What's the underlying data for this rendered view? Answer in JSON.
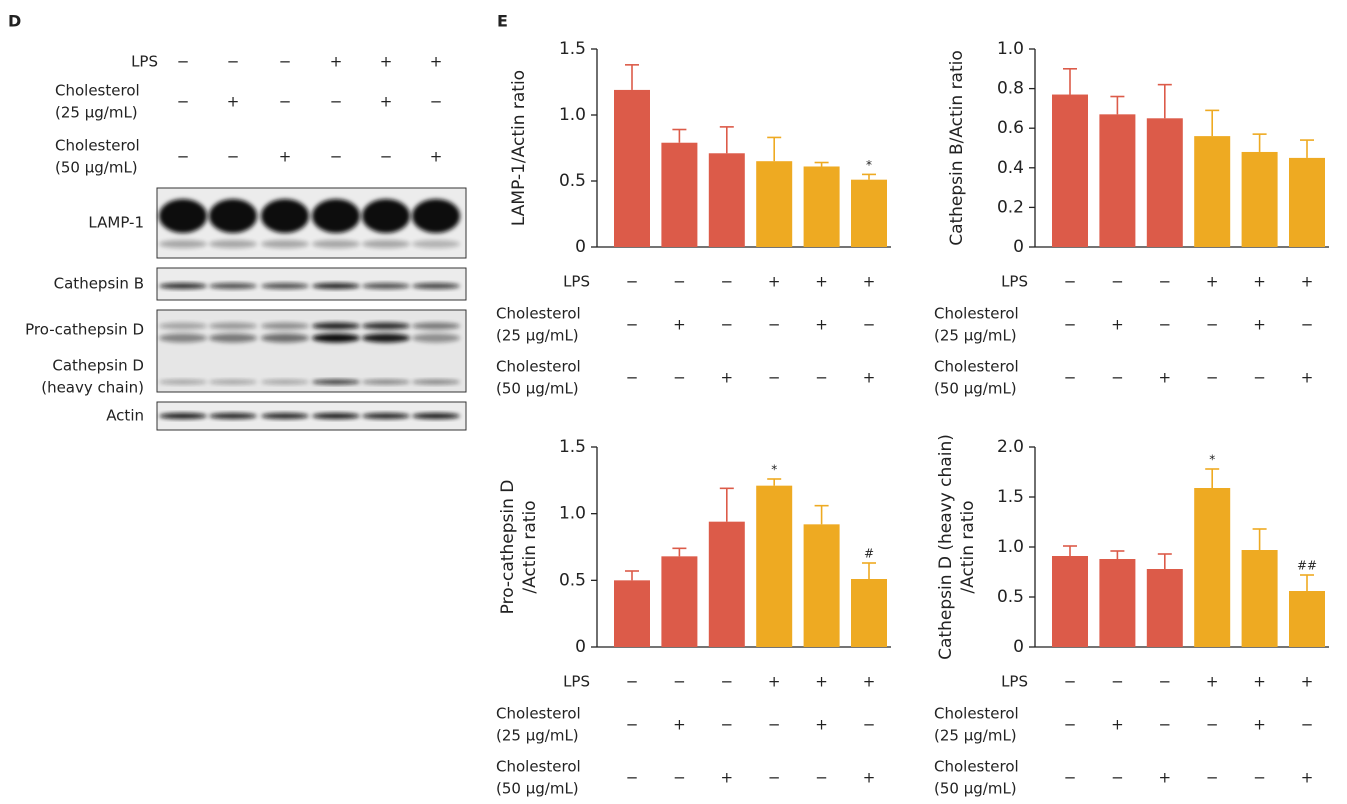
{
  "panel_d": {
    "label": "D",
    "treatments": [
      {
        "label": [
          "LPS"
        ],
        "signs": [
          "−",
          "−",
          "−",
          "+",
          "+",
          "+"
        ]
      },
      {
        "label": [
          "Cholesterol",
          "(25 µg/mL)"
        ],
        "signs": [
          "−",
          "+",
          "−",
          "−",
          "+",
          "−"
        ]
      },
      {
        "label": [
          "Cholesterol",
          "(50 µg/mL)"
        ],
        "signs": [
          "−",
          "−",
          "+",
          "−",
          "−",
          "+"
        ]
      }
    ],
    "blots": [
      {
        "labels": [
          "LAMP-1"
        ]
      },
      {
        "labels": [
          "Cathepsin B"
        ]
      },
      {
        "labels": [
          "Pro-cathepsin D",
          "Cathepsin D",
          "(heavy chain)"
        ]
      },
      {
        "labels": [
          "Actin"
        ]
      }
    ]
  },
  "panel_e_label": "E",
  "chart_data": [
    {
      "type": "bar",
      "y_label": [
        "LAMP-1/Actin ratio"
      ],
      "values": [
        1.19,
        0.79,
        0.71,
        0.65,
        0.61,
        0.51
      ],
      "errors": [
        0.19,
        0.1,
        0.2,
        0.18,
        0.03,
        0.04
      ],
      "colors": [
        "#dc5b49",
        "#dc5b49",
        "#dc5b49",
        "#eeaa22",
        "#eeaa22",
        "#eeaa22"
      ],
      "annotations": [
        null,
        null,
        null,
        null,
        null,
        "*"
      ],
      "ylim": [
        0,
        1.5
      ],
      "yticks": [
        0,
        0.5,
        {
          "value": 1,
          "label": "1.0"
        },
        1.5
      ],
      "treatments": [
        {
          "label": [
            "LPS"
          ],
          "signs": [
            "−",
            "−",
            "−",
            "+",
            "+",
            "+"
          ]
        },
        {
          "label": [
            "Cholesterol",
            "(25 µg/mL)"
          ],
          "signs": [
            "−",
            "+",
            "−",
            "−",
            "+",
            "−"
          ]
        },
        {
          "label": [
            "Cholesterol",
            "(50 µg/mL)"
          ],
          "signs": [
            "−",
            "−",
            "+",
            "−",
            "−",
            "+"
          ]
        }
      ]
    },
    {
      "type": "bar",
      "y_label": [
        "Cathepsin B/Actin ratio"
      ],
      "values": [
        0.77,
        0.67,
        0.65,
        0.56,
        0.48,
        0.45
      ],
      "errors": [
        0.13,
        0.09,
        0.17,
        0.13,
        0.09,
        0.09
      ],
      "colors": [
        "#dc5b49",
        "#dc5b49",
        "#dc5b49",
        "#eeaa22",
        "#eeaa22",
        "#eeaa22"
      ],
      "annotations": [
        null,
        null,
        null,
        null,
        null,
        null
      ],
      "ylim": [
        0,
        1
      ],
      "yticks": [
        0,
        0.2,
        0.4,
        0.6,
        0.8,
        {
          "value": 1,
          "label": "1.0"
        }
      ],
      "treatments": [
        {
          "label": [
            "LPS"
          ],
          "signs": [
            "−",
            "−",
            "−",
            "+",
            "+",
            "+"
          ]
        },
        {
          "label": [
            "Cholesterol",
            "(25 µg/mL)"
          ],
          "signs": [
            "−",
            "+",
            "−",
            "−",
            "+",
            "−"
          ]
        },
        {
          "label": [
            "Cholesterol",
            "(50 µg/mL)"
          ],
          "signs": [
            "−",
            "−",
            "+",
            "−",
            "−",
            "+"
          ]
        }
      ]
    },
    {
      "type": "bar",
      "y_label": [
        "Pro-cathepsin D",
        "/Actin ratio"
      ],
      "values": [
        0.5,
        0.68,
        0.94,
        1.21,
        0.92,
        0.51
      ],
      "errors": [
        0.07,
        0.06,
        0.25,
        0.05,
        0.14,
        0.12
      ],
      "colors": [
        "#dc5b49",
        "#dc5b49",
        "#dc5b49",
        "#eeaa22",
        "#eeaa22",
        "#eeaa22"
      ],
      "annotations": [
        null,
        null,
        null,
        "*",
        null,
        "#"
      ],
      "ylim": [
        0,
        1.5
      ],
      "yticks": [
        0,
        0.5,
        {
          "value": 1,
          "label": "1.0"
        },
        1.5
      ],
      "treatments": [
        {
          "label": [
            "LPS"
          ],
          "signs": [
            "−",
            "−",
            "−",
            "+",
            "+",
            "+"
          ]
        },
        {
          "label": [
            "Cholesterol",
            "(25 µg/mL)"
          ],
          "signs": [
            "−",
            "+",
            "−",
            "−",
            "+",
            "−"
          ]
        },
        {
          "label": [
            "Cholesterol",
            "(50 µg/mL)"
          ],
          "signs": [
            "−",
            "−",
            "+",
            "−",
            "−",
            "+"
          ]
        }
      ]
    },
    {
      "type": "bar",
      "y_label": [
        "Cathepsin D (heavy chain)",
        "/Actin ratio"
      ],
      "values": [
        0.91,
        0.88,
        0.78,
        1.59,
        0.97,
        0.56
      ],
      "errors": [
        0.1,
        0.08,
        0.15,
        0.19,
        0.21,
        0.16
      ],
      "colors": [
        "#dc5b49",
        "#dc5b49",
        "#dc5b49",
        "#eeaa22",
        "#eeaa22",
        "#eeaa22"
      ],
      "annotations": [
        null,
        null,
        null,
        "*",
        null,
        "##"
      ],
      "ylim": [
        0,
        2
      ],
      "yticks": [
        0,
        0.5,
        {
          "value": 1,
          "label": "1.0"
        },
        1.5,
        {
          "value": 2,
          "label": "2.0"
        }
      ],
      "treatments": [
        {
          "label": [
            "LPS"
          ],
          "signs": [
            "−",
            "−",
            "−",
            "+",
            "+",
            "+"
          ]
        },
        {
          "label": [
            "Cholesterol",
            "(25 µg/mL)"
          ],
          "signs": [
            "−",
            "+",
            "−",
            "−",
            "+",
            "−"
          ]
        },
        {
          "label": [
            "Cholesterol",
            "(50 µg/mL)"
          ],
          "signs": [
            "−",
            "−",
            "+",
            "−",
            "−",
            "+"
          ]
        }
      ]
    }
  ]
}
